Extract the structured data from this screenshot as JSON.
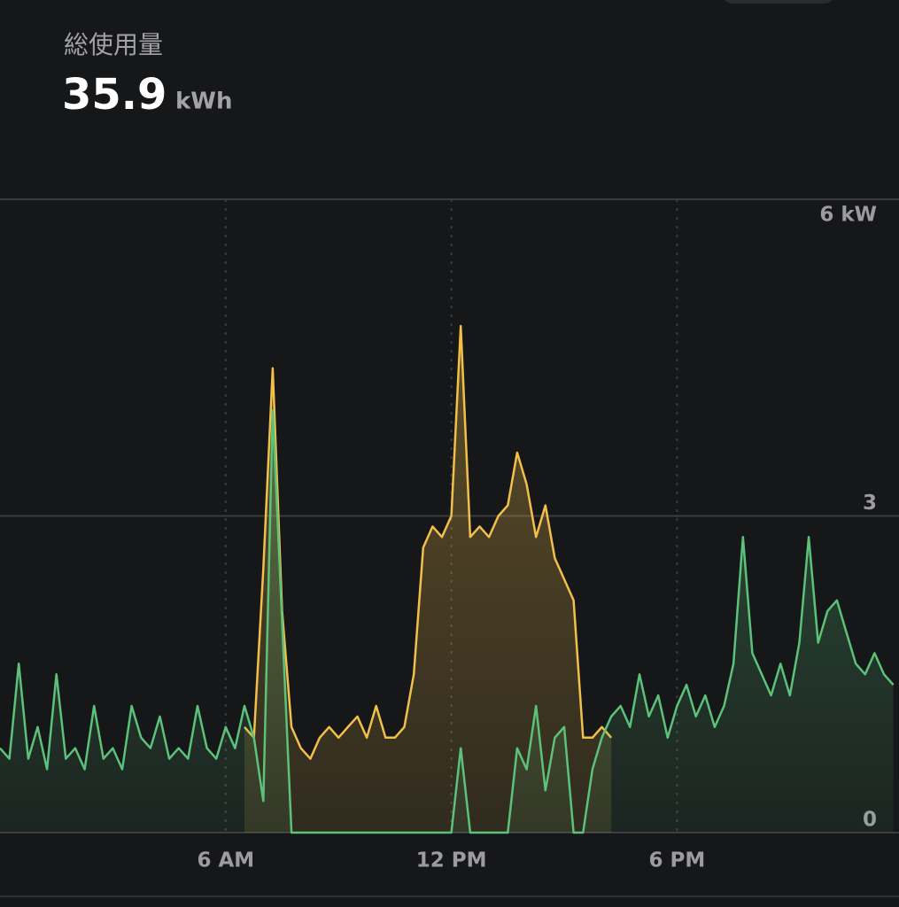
{
  "header": {
    "title": "総使用量",
    "total": "35.9",
    "unit": "kWh"
  },
  "chart_data": {
    "type": "line",
    "x": [
      0,
      0.25,
      0.5,
      0.75,
      1,
      1.25,
      1.5,
      1.75,
      2,
      2.25,
      2.5,
      2.75,
      3,
      3.25,
      3.5,
      3.75,
      4,
      4.25,
      4.5,
      4.75,
      5,
      5.25,
      5.5,
      5.75,
      6,
      6.25,
      6.5,
      6.75,
      7,
      7.25,
      7.5,
      7.75,
      8,
      8.25,
      8.5,
      8.75,
      9,
      9.25,
      9.5,
      9.75,
      10,
      10.25,
      10.5,
      10.75,
      11,
      11.25,
      11.5,
      11.75,
      12,
      12.25,
      12.5,
      12.75,
      13,
      13.25,
      13.5,
      13.75,
      14,
      14.25,
      14.5,
      14.75,
      15,
      15.25,
      15.5,
      15.75,
      16,
      16.25,
      16.5,
      16.75,
      17,
      17.25,
      17.5,
      17.75,
      18,
      18.25,
      18.5,
      18.75,
      19,
      19.25,
      19.5,
      19.75,
      20,
      20.25,
      20.5,
      20.75,
      21,
      21.25,
      21.5,
      21.75,
      22,
      22.25,
      22.5,
      22.75,
      23,
      23.25,
      23.5,
      23.75
    ],
    "series": [
      {
        "color": "#f2c04a",
        "values": [
          null,
          null,
          null,
          null,
          null,
          null,
          null,
          null,
          null,
          null,
          null,
          null,
          null,
          null,
          null,
          null,
          null,
          null,
          null,
          null,
          null,
          null,
          null,
          null,
          null,
          null,
          1.0,
          0.9,
          2.5,
          4.4,
          2.1,
          1.0,
          0.8,
          0.7,
          0.9,
          1.0,
          0.9,
          1.0,
          1.1,
          0.9,
          1.2,
          0.9,
          0.9,
          1.0,
          1.5,
          2.7,
          2.9,
          2.8,
          3.0,
          4.8,
          2.8,
          2.9,
          2.8,
          3.0,
          3.1,
          3.6,
          3.3,
          2.8,
          3.1,
          2.6,
          2.4,
          2.2,
          0.9,
          0.9,
          1.0,
          0.9,
          null,
          null,
          null,
          null,
          null,
          null,
          null,
          null,
          null,
          null,
          null,
          null,
          null,
          null,
          null,
          null,
          null,
          null,
          null,
          null,
          null,
          null,
          null,
          null,
          null,
          null,
          null,
          null,
          null,
          null
        ]
      },
      {
        "color": "#5cc27a",
        "values": [
          0.8,
          0.7,
          1.6,
          0.7,
          1.0,
          0.6,
          1.5,
          0.7,
          0.8,
          0.6,
          1.2,
          0.7,
          0.8,
          0.6,
          1.2,
          0.9,
          0.8,
          1.1,
          0.7,
          0.8,
          0.7,
          1.2,
          0.8,
          0.7,
          1.0,
          0.8,
          1.2,
          0.9,
          0.3,
          4.0,
          2.0,
          0.0,
          0,
          0,
          0,
          0,
          0,
          0,
          0,
          0,
          0,
          0,
          0,
          0,
          0,
          0,
          0,
          0,
          0.0,
          0.8,
          0.0,
          0.0,
          0.0,
          0.0,
          0.0,
          0.8,
          0.6,
          1.2,
          0.4,
          0.9,
          1.0,
          0.0,
          0.0,
          0.6,
          0.9,
          1.1,
          1.2,
          1.0,
          1.5,
          1.1,
          1.3,
          0.9,
          1.2,
          1.4,
          1.1,
          1.3,
          1.0,
          1.2,
          1.6,
          2.8,
          1.7,
          1.5,
          1.3,
          1.6,
          1.3,
          1.8,
          2.8,
          1.8,
          2.1,
          2.2,
          1.9,
          1.6,
          1.5,
          1.7,
          1.5,
          1.4
        ]
      }
    ],
    "xlim": [
      0,
      23.9
    ],
    "xticks": [
      {
        "value": 6,
        "label": "6 AM"
      },
      {
        "value": 12,
        "label": "12 PM"
      },
      {
        "value": 18,
        "label": "6 PM"
      }
    ],
    "ylim": [
      0,
      6
    ],
    "yticks": [
      0,
      3,
      {
        "value": 6,
        "label": "6 kW"
      }
    ],
    "grid": true
  }
}
